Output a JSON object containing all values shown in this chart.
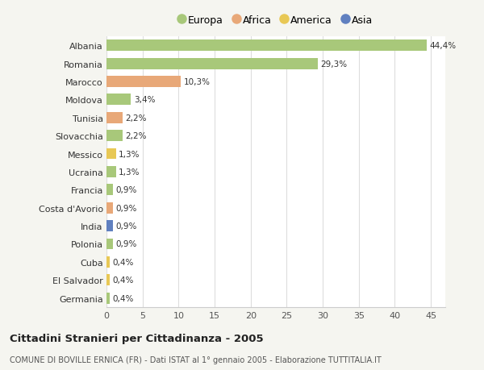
{
  "countries": [
    "Albania",
    "Romania",
    "Marocco",
    "Moldova",
    "Tunisia",
    "Slovacchia",
    "Messico",
    "Ucraina",
    "Francia",
    "Costa d'Avorio",
    "India",
    "Polonia",
    "Cuba",
    "El Salvador",
    "Germania"
  ],
  "values": [
    44.4,
    29.3,
    10.3,
    3.4,
    2.2,
    2.2,
    1.3,
    1.3,
    0.9,
    0.9,
    0.9,
    0.9,
    0.4,
    0.4,
    0.4
  ],
  "labels": [
    "44,4%",
    "29,3%",
    "10,3%",
    "3,4%",
    "2,2%",
    "2,2%",
    "1,3%",
    "1,3%",
    "0,9%",
    "0,9%",
    "0,9%",
    "0,9%",
    "0,4%",
    "0,4%",
    "0,4%"
  ],
  "continents": [
    "Europa",
    "Europa",
    "Africa",
    "Europa",
    "Africa",
    "Europa",
    "America",
    "Europa",
    "Europa",
    "Africa",
    "Asia",
    "Europa",
    "America",
    "America",
    "Europa"
  ],
  "colors": {
    "Europa": "#a8c87a",
    "Africa": "#e8a878",
    "America": "#e8c855",
    "Asia": "#6080c0"
  },
  "legend_labels": [
    "Europa",
    "Africa",
    "America",
    "Asia"
  ],
  "legend_colors": [
    "#a8c87a",
    "#e8a878",
    "#e8c855",
    "#6080c0"
  ],
  "title": "Cittadini Stranieri per Cittadinanza - 2005",
  "subtitle": "COMUNE DI BOVILLE ERNICA (FR) - Dati ISTAT al 1° gennaio 2005 - Elaborazione TUTTITALIA.IT",
  "xlim": [
    0,
    47
  ],
  "xticks": [
    0,
    5,
    10,
    15,
    20,
    25,
    30,
    35,
    40,
    45
  ],
  "background_color": "#f5f5f0",
  "plot_background": "#ffffff",
  "grid_color": "#dddddd"
}
